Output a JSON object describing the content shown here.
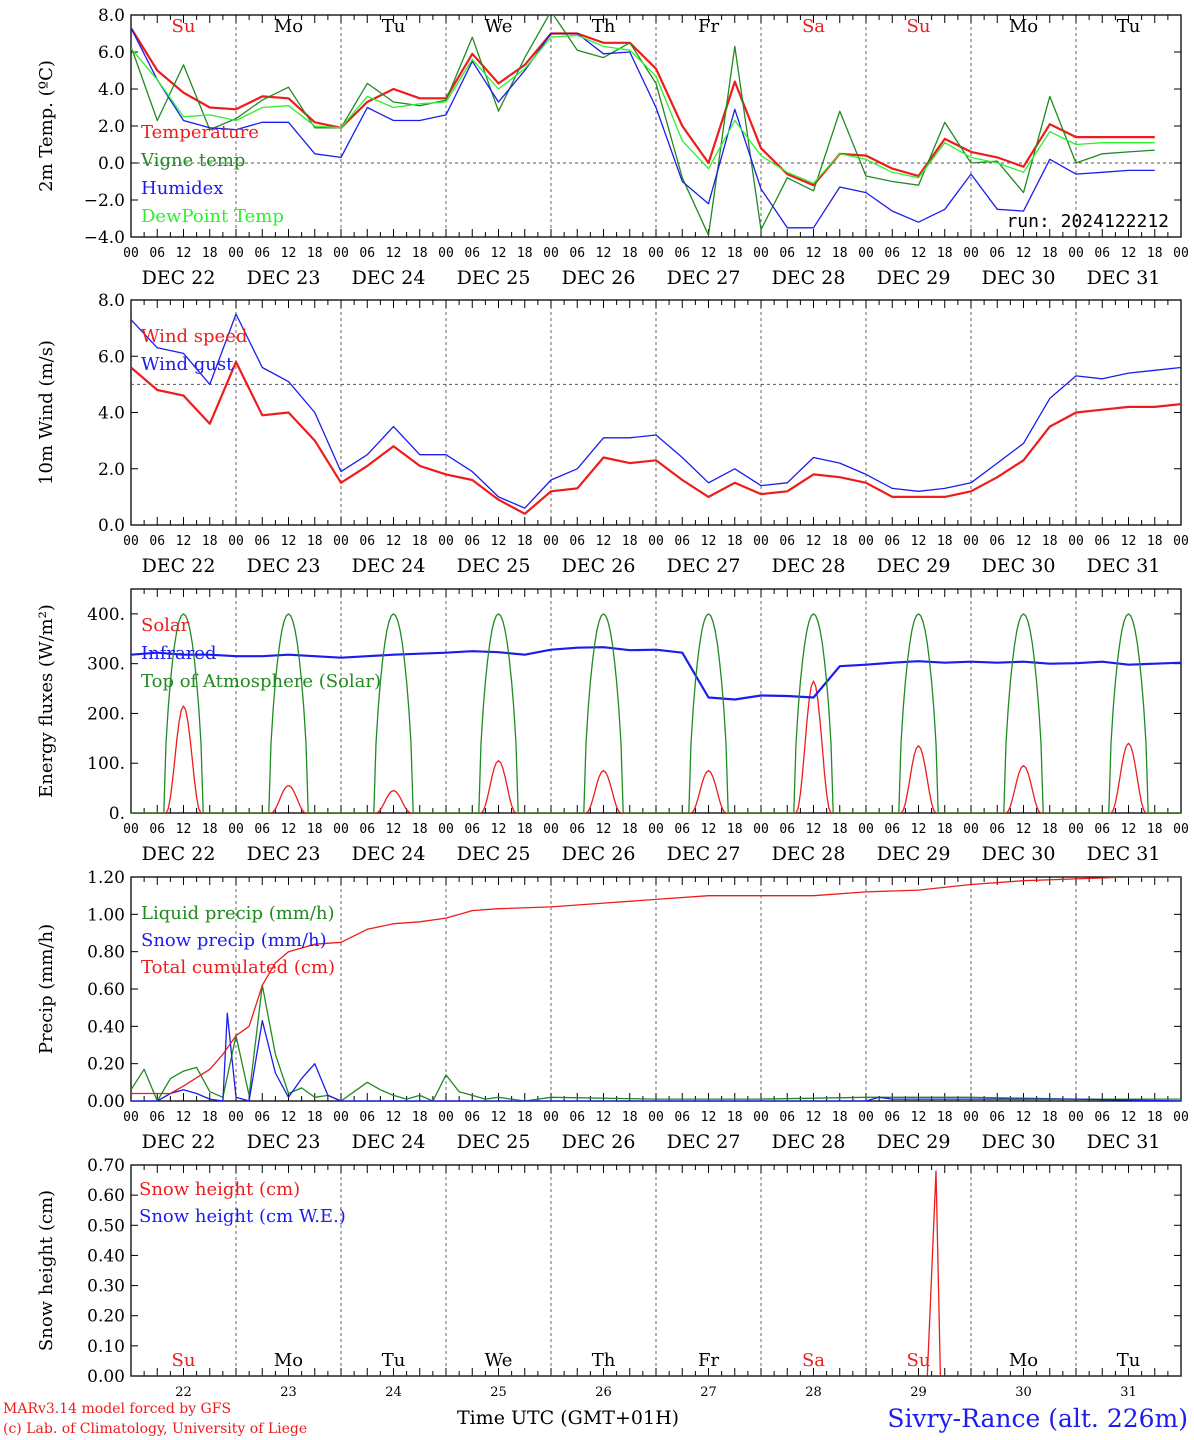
{
  "colors": {
    "red": "#ee1c1c",
    "green": "#218a21",
    "blue": "#1c1cee",
    "lightgreen": "#2df02d",
    "axis": "#000000",
    "grid": "#555555"
  },
  "days": [
    "DEC 22",
    "DEC 23",
    "DEC 24",
    "DEC 25",
    "DEC 26",
    "DEC 27",
    "DEC 28",
    "DEC 29",
    "DEC 30",
    "DEC 31"
  ],
  "hour_ticks": [
    "00",
    "06",
    "12",
    "18"
  ],
  "hour_end": "00",
  "weekdays": [
    {
      "label": "Su",
      "color": "#ee1c1c"
    },
    {
      "label": "Mo",
      "color": "#000000"
    },
    {
      "label": "Tu",
      "color": "#000000"
    },
    {
      "label": "We",
      "color": "#000000"
    },
    {
      "label": "Th",
      "color": "#000000"
    },
    {
      "label": "Fr",
      "color": "#000000"
    },
    {
      "label": "Sa",
      "color": "#ee1c1c"
    },
    {
      "label": "Su",
      "color": "#ee1c1c"
    },
    {
      "label": "Mo",
      "color": "#000000"
    },
    {
      "label": "Tu",
      "color": "#000000"
    }
  ],
  "day_numbers": [
    "22",
    "23",
    "24",
    "25",
    "26",
    "27",
    "28",
    "29",
    "30",
    "31"
  ],
  "run_label": "run: 2024122212",
  "footer": {
    "xlabel": "Time UTC (GMT+01H)",
    "credit_line1": "MARv3.14 model forced by GFS",
    "credit_line2": "(c) Lab. of Climatology, University of Liege",
    "station": "Sivry-Rance (alt. 226m)"
  },
  "chart_data": [
    {
      "id": "temperature",
      "type": "line",
      "ylabel": "2m Temp. (ºC)",
      "ylim": [
        -4,
        8
      ],
      "yticks": [
        -4,
        -2,
        0,
        2,
        4,
        6,
        8
      ],
      "ytick_labels": [
        "−4.0",
        "−2.0",
        "0.0",
        "2.0",
        "4.0",
        "6.0",
        "8.0"
      ],
      "ref_line": 0,
      "x_unit": "hours since DEC 22 00 UTC",
      "series": [
        {
          "name": "Temperature",
          "color": "red",
          "x": [
            0,
            6,
            12,
            18,
            24,
            30,
            36,
            42,
            48,
            54,
            60,
            66,
            72,
            78,
            84,
            90,
            96,
            102,
            108,
            114,
            120,
            126,
            132,
            138,
            144,
            150,
            156,
            162,
            168,
            174,
            180,
            186,
            192,
            198,
            204,
            210,
            216,
            222,
            228,
            234
          ],
          "y": [
            7.3,
            5.0,
            3.8,
            3.0,
            2.9,
            3.6,
            3.5,
            2.2,
            1.9,
            3.3,
            4.0,
            3.5,
            3.5,
            5.9,
            4.3,
            5.3,
            7.0,
            7.0,
            6.5,
            6.5,
            5.1,
            2.0,
            0.0,
            4.4,
            0.8,
            -0.6,
            -1.2,
            0.5,
            0.4,
            -0.3,
            -0.7,
            1.3,
            0.6,
            0.3,
            -0.2,
            2.1,
            1.4,
            1.4,
            1.4,
            1.4
          ]
        },
        {
          "name": "Vigne temp",
          "color": "green",
          "x": [
            0,
            6,
            12,
            18,
            24,
            30,
            36,
            42,
            48,
            54,
            60,
            66,
            72,
            78,
            84,
            90,
            96,
            102,
            108,
            114,
            120,
            126,
            132,
            138,
            144,
            150,
            156,
            162,
            168,
            174,
            180,
            186,
            192,
            198,
            204,
            210,
            216,
            222,
            228,
            234
          ],
          "y": [
            6.3,
            2.3,
            5.3,
            1.8,
            2.4,
            3.4,
            4.1,
            1.9,
            1.9,
            4.3,
            3.3,
            3.1,
            3.4,
            6.8,
            2.8,
            5.7,
            8.2,
            6.1,
            5.7,
            6.5,
            4.3,
            -0.8,
            -3.9,
            6.3,
            -3.6,
            -0.8,
            -1.5,
            2.8,
            -0.7,
            -1.0,
            -1.2,
            2.2,
            0.0,
            0.1,
            -1.6,
            3.6,
            0.0,
            0.5,
            0.6,
            0.7
          ]
        },
        {
          "name": "Humidex",
          "color": "blue",
          "x": [
            0,
            6,
            12,
            18,
            24,
            30,
            36,
            42,
            48,
            54,
            60,
            66,
            72,
            78,
            84,
            90,
            96,
            102,
            108,
            114,
            120,
            126,
            132,
            138,
            144,
            150,
            156,
            162,
            168,
            174,
            180,
            186,
            192,
            198,
            204,
            210,
            216,
            222,
            228,
            234
          ],
          "y": [
            7.3,
            4.5,
            2.3,
            1.9,
            1.8,
            2.2,
            2.2,
            0.5,
            0.3,
            3.0,
            2.3,
            2.3,
            2.6,
            5.5,
            3.3,
            5.0,
            7.0,
            7.0,
            5.9,
            6.0,
            3.0,
            -1.0,
            -2.2,
            2.9,
            -1.4,
            -3.5,
            -3.5,
            -1.3,
            -1.6,
            -2.6,
            -3.2,
            -2.5,
            -0.6,
            -2.5,
            -2.6,
            0.2,
            -0.6,
            -0.5,
            -0.4,
            -0.4
          ]
        },
        {
          "name": "DewPoint Temp",
          "color": "lightgreen",
          "x": [
            0,
            6,
            12,
            18,
            24,
            30,
            36,
            42,
            48,
            54,
            60,
            66,
            72,
            78,
            84,
            90,
            96,
            102,
            108,
            114,
            120,
            126,
            132,
            138,
            144,
            150,
            156,
            162,
            168,
            174,
            180,
            186,
            192,
            198,
            204,
            210,
            216,
            222,
            228,
            234
          ],
          "y": [
            6.2,
            4.5,
            2.5,
            2.6,
            2.3,
            3.0,
            3.1,
            2.0,
            1.9,
            3.6,
            3.0,
            3.2,
            3.3,
            5.6,
            4.0,
            5.1,
            6.8,
            6.9,
            6.3,
            6.1,
            4.7,
            1.2,
            -0.3,
            2.3,
            0.4,
            -0.5,
            -1.1,
            0.5,
            0.2,
            -0.5,
            -0.8,
            1.1,
            0.3,
            0.0,
            -0.5,
            1.7,
            1.0,
            1.1,
            1.1,
            1.1
          ]
        }
      ]
    },
    {
      "id": "wind",
      "type": "line",
      "ylabel": "10m Wind (m/s)",
      "ylim": [
        0,
        8
      ],
      "yticks": [
        0,
        2,
        4,
        6,
        8
      ],
      "ytick_labels": [
        "0.0",
        "2.0",
        "4.0",
        "6.0",
        "8.0"
      ],
      "ref_line": 5,
      "x_unit": "hours since DEC 22 00 UTC",
      "series": [
        {
          "name": "Wind speed",
          "color": "red",
          "x": [
            0,
            6,
            12,
            18,
            24,
            30,
            36,
            42,
            48,
            54,
            60,
            66,
            72,
            78,
            84,
            90,
            96,
            102,
            108,
            114,
            120,
            126,
            132,
            138,
            144,
            150,
            156,
            162,
            168,
            174,
            180,
            186,
            192,
            198,
            204,
            210,
            216,
            222,
            228,
            234,
            240
          ],
          "y": [
            5.6,
            4.8,
            4.6,
            3.6,
            5.8,
            3.9,
            4.0,
            3.0,
            1.5,
            2.1,
            2.8,
            2.1,
            1.8,
            1.6,
            0.9,
            0.4,
            1.2,
            1.3,
            2.4,
            2.2,
            2.3,
            1.6,
            1.0,
            1.5,
            1.1,
            1.2,
            1.8,
            1.7,
            1.5,
            1.0,
            1.0,
            1.0,
            1.2,
            1.7,
            2.3,
            3.5,
            4.0,
            4.1,
            4.2,
            4.2,
            4.3
          ]
        },
        {
          "name": "Wind gust",
          "color": "blue",
          "x": [
            0,
            6,
            12,
            18,
            24,
            30,
            36,
            42,
            48,
            54,
            60,
            66,
            72,
            78,
            84,
            90,
            96,
            102,
            108,
            114,
            120,
            126,
            132,
            138,
            144,
            150,
            156,
            162,
            168,
            174,
            180,
            186,
            192,
            198,
            204,
            210,
            216,
            222,
            228,
            234,
            240
          ],
          "y": [
            7.3,
            6.3,
            6.1,
            5.0,
            7.5,
            5.6,
            5.1,
            4.0,
            1.9,
            2.5,
            3.5,
            2.5,
            2.5,
            1.9,
            1.0,
            0.6,
            1.6,
            2.0,
            3.1,
            3.1,
            3.2,
            2.4,
            1.5,
            2.0,
            1.4,
            1.5,
            2.4,
            2.2,
            1.8,
            1.3,
            1.2,
            1.3,
            1.5,
            2.2,
            2.9,
            4.5,
            5.3,
            5.2,
            5.4,
            5.5,
            5.6
          ]
        }
      ]
    },
    {
      "id": "energy",
      "type": "line",
      "ylabel": "Energy fluxes (W/m²)",
      "ylim": [
        0,
        450
      ],
      "yticks": [
        0,
        100,
        200,
        300,
        400
      ],
      "ytick_labels": [
        "0.",
        "100.",
        "200.",
        "300.",
        "400."
      ],
      "x_unit": "hours since DEC 22 00 UTC",
      "series": [
        {
          "name": "Solar",
          "color": "red",
          "peaks": [
            215,
            55,
            45,
            105,
            85,
            85,
            265,
            135,
            95,
            140
          ]
        },
        {
          "name": "Infrared",
          "color": "blue",
          "x": [
            0,
            6,
            12,
            18,
            24,
            30,
            36,
            42,
            48,
            54,
            60,
            66,
            72,
            78,
            84,
            90,
            96,
            102,
            108,
            114,
            120,
            126,
            132,
            138,
            144,
            150,
            156,
            162,
            168,
            174,
            180,
            186,
            192,
            198,
            204,
            210,
            216,
            222,
            228,
            234,
            240
          ],
          "y": [
            318,
            322,
            318,
            318,
            315,
            315,
            318,
            315,
            312,
            315,
            318,
            320,
            322,
            325,
            323,
            318,
            328,
            332,
            333,
            327,
            328,
            322,
            232,
            228,
            236,
            235,
            232,
            295,
            298,
            302,
            305,
            302,
            304,
            302,
            304,
            300,
            301,
            304,
            298,
            300,
            302
          ]
        },
        {
          "name": "Top of Atmosphere (Solar)",
          "color": "green",
          "peak": 400
        }
      ]
    },
    {
      "id": "precip",
      "type": "line",
      "ylabel": "Precip (mm/h)",
      "ylim": [
        0,
        1.2
      ],
      "yticks": [
        0,
        0.2,
        0.4,
        0.6,
        0.8,
        1.0,
        1.2
      ],
      "ytick_labels": [
        "0.00",
        "0.20",
        "0.40",
        "0.60",
        "0.80",
        "1.00",
        "1.20"
      ],
      "x_unit": "hours since DEC 22 00 UTC",
      "series": [
        {
          "name": "Liquid precip (mm/h)",
          "color": "green",
          "x": [
            0,
            3,
            6,
            9,
            12,
            15,
            18,
            21,
            24,
            27,
            30,
            33,
            36,
            39,
            42,
            45,
            48,
            51,
            54,
            57,
            60,
            63,
            66,
            69,
            72,
            75,
            78,
            81,
            84,
            90,
            96,
            120,
            144,
            168,
            192,
            216,
            240
          ],
          "y": [
            0.06,
            0.17,
            0.0,
            0.12,
            0.16,
            0.18,
            0.05,
            0.02,
            0.35,
            0.03,
            0.62,
            0.25,
            0.04,
            0.07,
            0.02,
            0.03,
            0.0,
            0.05,
            0.1,
            0.06,
            0.03,
            0.01,
            0.03,
            0.0,
            0.14,
            0.05,
            0.03,
            0.01,
            0.02,
            0.0,
            0.02,
            0.01,
            0.01,
            0.02,
            0.02,
            0.01,
            0.01
          ]
        },
        {
          "name": "Snow precip (mm/h)",
          "color": "blue",
          "x": [
            0,
            6,
            9,
            12,
            15,
            18,
            21,
            22,
            24,
            27,
            30,
            33,
            36,
            39,
            42,
            45,
            48,
            54,
            60,
            72,
            96,
            168,
            171,
            174,
            192,
            216,
            240
          ],
          "y": [
            0.0,
            0.0,
            0.04,
            0.06,
            0.04,
            0.01,
            0.0,
            0.47,
            0.02,
            0.0,
            0.43,
            0.15,
            0.02,
            0.12,
            0.2,
            0.03,
            0.0,
            0.0,
            0.0,
            0.0,
            0.0,
            0.0,
            0.02,
            0.01,
            0.01,
            0.01,
            0.0
          ]
        },
        {
          "name": "Total cumulated (cm)",
          "color": "red",
          "x": [
            0,
            9,
            12,
            18,
            21,
            24,
            27,
            30,
            33,
            36,
            42,
            48,
            54,
            60,
            66,
            72,
            78,
            84,
            96,
            108,
            120,
            132,
            144,
            156,
            168,
            180,
            192,
            204,
            216,
            228,
            240
          ],
          "y": [
            0.04,
            0.04,
            0.08,
            0.17,
            0.25,
            0.35,
            0.4,
            0.62,
            0.74,
            0.8,
            0.84,
            0.85,
            0.92,
            0.95,
            0.96,
            0.98,
            1.02,
            1.03,
            1.04,
            1.06,
            1.08,
            1.1,
            1.1,
            1.1,
            1.12,
            1.13,
            1.16,
            1.18,
            1.19,
            1.2,
            1.2
          ]
        }
      ]
    },
    {
      "id": "snow",
      "type": "line",
      "ylabel": "Snow height (cm)",
      "ylim": [
        0,
        0.7
      ],
      "yticks": [
        0,
        0.1,
        0.2,
        0.3,
        0.4,
        0.5,
        0.6,
        0.7
      ],
      "ytick_labels": [
        "0.00",
        "0.10",
        "0.20",
        "0.30",
        "0.40",
        "0.50",
        "0.60",
        "0.70"
      ],
      "x_unit": "hours since DEC 22 00 UTC",
      "series": [
        {
          "name": "Snow height (cm)",
          "color": "red",
          "x": [
            0,
            182,
            184,
            185,
            240
          ],
          "y": [
            0,
            0,
            0.68,
            0,
            0
          ]
        },
        {
          "name": "Snow height (cm W.E.)",
          "color": "blue",
          "x": [
            0,
            240
          ],
          "y": [
            0,
            0
          ]
        }
      ]
    }
  ]
}
